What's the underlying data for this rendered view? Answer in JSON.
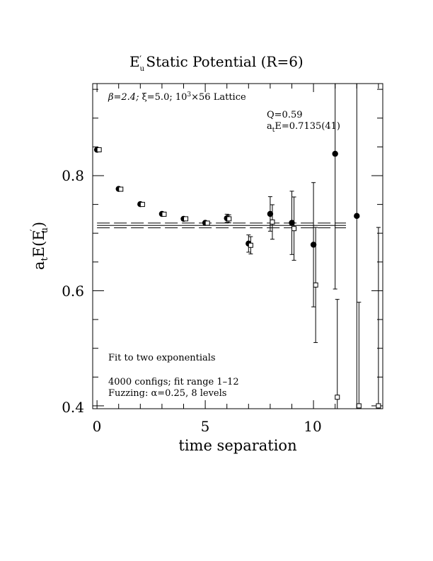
{
  "chart_data": {
    "type": "scatter",
    "title": {
      "main": "E",
      "sub": "u",
      "prime": "′",
      "rest": "  Static Potential (R=6)"
    },
    "xlabel": "time separation",
    "ylabel": {
      "pre": "a",
      "t": "t",
      "mid": "E(E",
      "prime": "′",
      "u": "u",
      "post": ")"
    },
    "xlim": [
      -0.2,
      13.2
    ],
    "ylim": [
      0.395,
      0.96
    ],
    "x_ticks": [
      0,
      5,
      10
    ],
    "y_ticks": [
      0.4,
      0.6,
      0.8
    ],
    "x_tick_labels": [
      "0",
      "5",
      "10"
    ],
    "y_tick_labels": [
      "0.4",
      "0.6",
      "0.8"
    ],
    "annotations": {
      "lattice": {
        "beta": "β=2.4; ",
        "xi": "ξ=5.0; ",
        "size": "10",
        "sup": "3",
        "rest": "×56 Lattice"
      },
      "q": "Q=0.59",
      "fit_energy": {
        "pre": "a",
        "t": "t",
        "rest": "E=0.7135(41)"
      },
      "fit_desc": "Fit to two exponentials",
      "configs": "4000 configs; fit range 1–12",
      "fuzzing": "Fuzzing: α=0.25, 8 levels"
    },
    "fit": {
      "center": 0.7135,
      "err": 0.0041,
      "x_range": [
        0,
        11.5
      ]
    },
    "series": [
      {
        "marker": "filled-circle",
        "points": [
          {
            "x": 0,
            "y": 0.845,
            "err": 0.002
          },
          {
            "x": 1,
            "y": 0.777,
            "err": 0.002
          },
          {
            "x": 2,
            "y": 0.7505,
            "err": 0.002
          },
          {
            "x": 3,
            "y": 0.7335,
            "err": 0.002
          },
          {
            "x": 4,
            "y": 0.725,
            "err": 0.003
          },
          {
            "x": 5,
            "y": 0.718,
            "err": 0.003
          },
          {
            "x": 6,
            "y": 0.726,
            "err": 0.007
          },
          {
            "x": 7,
            "y": 0.682,
            "err": 0.015
          },
          {
            "x": 8,
            "y": 0.7335,
            "err": 0.03
          },
          {
            "x": 9,
            "y": 0.718,
            "err": 0.055
          },
          {
            "x": 10,
            "y": 0.68,
            "err": 0.108
          },
          {
            "x": 11,
            "y": 0.838,
            "err": 0.235
          },
          {
            "x": 12,
            "y": 0.73,
            "err": 0.35
          }
        ]
      },
      {
        "marker": "open-square",
        "points": [
          {
            "x": 0.1,
            "y": 0.845,
            "err": 0.002
          },
          {
            "x": 1.1,
            "y": 0.7765,
            "err": 0.002
          },
          {
            "x": 2.1,
            "y": 0.75,
            "err": 0.002
          },
          {
            "x": 3.1,
            "y": 0.733,
            "err": 0.002
          },
          {
            "x": 4.1,
            "y": 0.725,
            "err": 0.003
          },
          {
            "x": 5.1,
            "y": 0.7175,
            "err": 0.003
          },
          {
            "x": 6.1,
            "y": 0.725,
            "err": 0.007
          },
          {
            "x": 7.1,
            "y": 0.679,
            "err": 0.015
          },
          {
            "x": 8.1,
            "y": 0.7195,
            "err": 0.03
          },
          {
            "x": 9.1,
            "y": 0.708,
            "err": 0.055
          },
          {
            "x": 10.1,
            "y": 0.61,
            "err": 0.1
          },
          {
            "x": 11.1,
            "y": 0.415,
            "err": 0.17
          },
          {
            "x": 12.1,
            "y": 0.4,
            "err": 0.18
          },
          {
            "x": 13.0,
            "y": 0.4,
            "err": 0.31
          }
        ]
      }
    ]
  }
}
